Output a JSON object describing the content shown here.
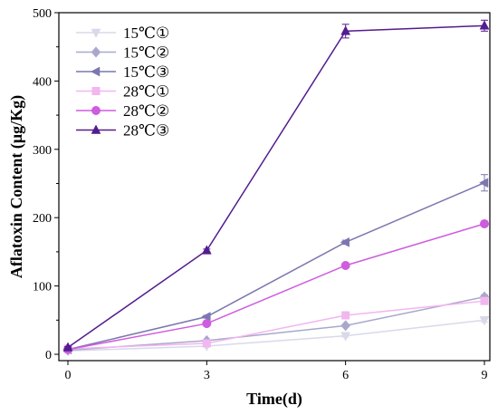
{
  "chart_data": {
    "type": "line",
    "title": "",
    "xlabel": "Time(d)",
    "ylabel": "Aflatoxin Content (μg/Kg)",
    "xlim": [
      0,
      9
    ],
    "ylim": [
      0,
      500
    ],
    "x": [
      0,
      3,
      6,
      9
    ],
    "xticks": [
      0,
      3,
      6,
      9
    ],
    "yticks": [
      0,
      100,
      200,
      300,
      400,
      500
    ],
    "grid": false,
    "legend_position": "top-left",
    "series": [
      {
        "name": "15℃①",
        "marker": "triangle-down",
        "color": "#d9d9ea",
        "values": [
          5,
          12,
          27,
          50
        ],
        "errors": [
          1,
          1,
          2,
          3
        ]
      },
      {
        "name": "15℃②",
        "marker": "diamond",
        "color": "#a9a8cc",
        "values": [
          6,
          20,
          42,
          84
        ],
        "errors": [
          1,
          1,
          2,
          3
        ]
      },
      {
        "name": "15℃③",
        "marker": "triangle-left",
        "color": "#7b77b0",
        "values": [
          7,
          55,
          164,
          251
        ],
        "errors": [
          1,
          2,
          3,
          12
        ]
      },
      {
        "name": "28℃①",
        "marker": "square",
        "color": "#f2b6f0",
        "values": [
          8,
          16,
          57,
          78
        ],
        "errors": [
          1,
          1,
          2,
          3
        ]
      },
      {
        "name": "28℃②",
        "marker": "circle",
        "color": "#cf5cdf",
        "values": [
          7,
          45,
          130,
          191
        ],
        "errors": [
          1,
          2,
          3,
          4
        ]
      },
      {
        "name": "28℃③",
        "marker": "triangle-up",
        "color": "#531c8f",
        "values": [
          10,
          152,
          473,
          481
        ],
        "errors": [
          1,
          2,
          10,
          8
        ]
      }
    ]
  }
}
